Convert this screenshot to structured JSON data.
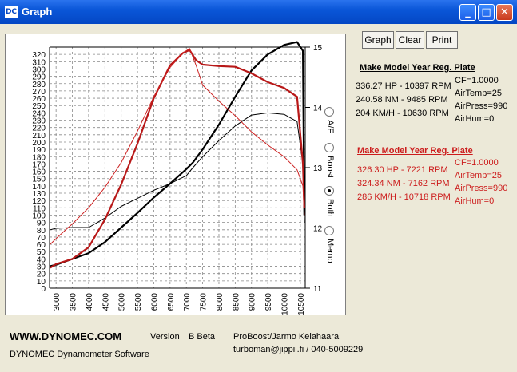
{
  "window": {
    "title": "Graph",
    "icon_text": "DC",
    "controls": {
      "minimize": "_",
      "maximize": "□",
      "close": "✕"
    }
  },
  "toolbar": {
    "graph": "Graph",
    "clear": "Clear",
    "print": "Print"
  },
  "chart_data": {
    "type": "line",
    "x_ticks": [
      "3000",
      "3500",
      "4000",
      "4500",
      "5000",
      "5500",
      "6000",
      "6500",
      "7000",
      "7500",
      "8000",
      "8500",
      "9000",
      "9500",
      "10000",
      "10500"
    ],
    "y_left_ticks": [
      "0",
      "10",
      "20",
      "30",
      "40",
      "50",
      "60",
      "70",
      "80",
      "90",
      "100",
      "110",
      "120",
      "130",
      "140",
      "150",
      "160",
      "170",
      "180",
      "190",
      "200",
      "210",
      "220",
      "230",
      "240",
      "250",
      "260",
      "270",
      "280",
      "290",
      "300",
      "310",
      "320"
    ],
    "y_right_ticks": [
      "11",
      "12",
      "13",
      "14",
      "15"
    ],
    "xlim": [
      2800,
      10650
    ],
    "ylim": [
      0,
      330
    ],
    "y2lim": [
      11,
      15
    ],
    "grid": true,
    "series": [
      {
        "x": [
          2820,
          3000,
          3500,
          4000,
          4500,
          5000,
          5500,
          6000,
          6500,
          7000,
          7200,
          7500,
          8000,
          8500,
          9000,
          9500,
          10000,
          10400,
          10580,
          10620
        ],
        "values": [
          30,
          32,
          40,
          48,
          63,
          83,
          103,
          124,
          143,
          163,
          172,
          190,
          224,
          262,
          298,
          320,
          333,
          337,
          325,
          100
        ],
        "color": "#000000",
        "width": 2.2
      },
      {
        "x": [
          2820,
          3000,
          3500,
          4000,
          4500,
          5000,
          5500,
          6000,
          6500,
          7000,
          7200,
          7500,
          8000,
          8500,
          9000,
          9500,
          10000,
          10400,
          10580,
          10620
        ],
        "values": [
          80,
          82,
          83,
          83,
          96,
          112,
          123,
          134,
          143,
          154,
          165,
          180,
          202,
          222,
          237,
          240,
          238,
          228,
          170,
          90
        ],
        "color": "#000000",
        "width": 1
      },
      {
        "x": [
          2820,
          3000,
          3500,
          4000,
          4500,
          5000,
          5500,
          6000,
          6500,
          6900,
          7100,
          7300,
          7500,
          8000,
          8500,
          9000,
          9500,
          10000,
          10400,
          10580,
          10620
        ],
        "values": [
          28,
          33,
          40,
          56,
          94,
          142,
          198,
          260,
          305,
          322,
          326,
          312,
          306,
          304,
          303,
          294,
          282,
          274,
          262,
          170,
          110
        ],
        "color": "#b81818",
        "width": 2.2
      },
      {
        "x": [
          2820,
          3000,
          3500,
          4000,
          4500,
          5000,
          5500,
          6000,
          6500,
          6900,
          7100,
          7300,
          7500,
          8000,
          8500,
          9000,
          9500,
          10000,
          10400,
          10580,
          10620
        ],
        "values": [
          60,
          68,
          88,
          110,
          138,
          172,
          215,
          262,
          302,
          322,
          328,
          305,
          278,
          256,
          236,
          214,
          196,
          180,
          162,
          140,
          100
        ],
        "color": "#cc2020",
        "width": 1
      }
    ]
  },
  "radio": [
    {
      "label": "A/F",
      "checked": false
    },
    {
      "label": "Boost",
      "checked": false
    },
    {
      "label": "Both",
      "checked": true
    },
    {
      "label": "Memo",
      "checked": false
    }
  ],
  "run1": {
    "header": "Make  Model   Year  Reg. Plate",
    "hp": "336.27 HP - 10397 RPM",
    "nm": "240.58 NM - 9485 RPM",
    "kmh": "204 KM/H - 10630 RPM",
    "cf": "CF=1.0000",
    "airtemp": "AirTemp=25",
    "airpress": "AirPress=990",
    "airhum": "AirHum=0"
  },
  "run2": {
    "header": "Make  Model   Year  Reg. Plate",
    "hp": "326.30 HP - 7221 RPM",
    "nm": "324.34 NM - 7162 RPM",
    "kmh": "286 KM/H - 10718 RPM",
    "cf": "CF=1.0000",
    "airtemp": "AirTemp=25",
    "airpress": "AirPress=990",
    "airhum": "AirHum=0"
  },
  "footer": {
    "site": "WWW.DYNOMEC.COM",
    "version_label": "Version",
    "version": "B Beta",
    "software": "DYNOMEC Dynamometer Software",
    "author": "ProBoost/Jarmo Kelahaara",
    "contact": "turboman@jippii.fi / 040-5009229"
  }
}
